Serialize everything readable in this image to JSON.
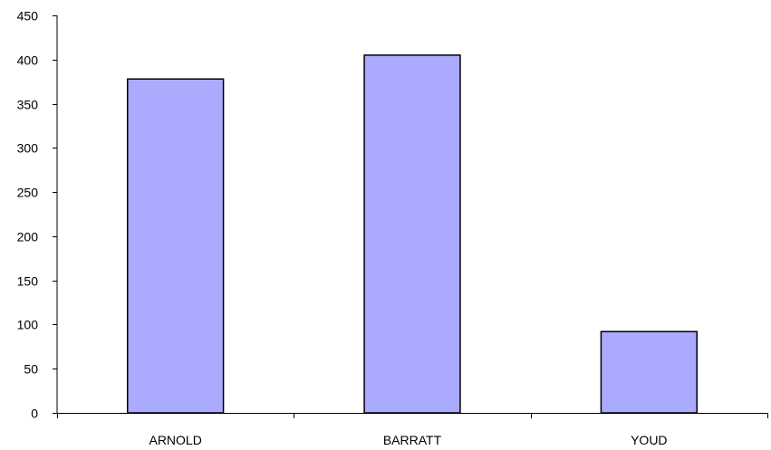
{
  "chart_data": {
    "type": "bar",
    "title": "",
    "xlabel": "",
    "ylabel": "",
    "categories": [
      "ARNOLD",
      "BARRATT",
      "YOUD"
    ],
    "values": [
      378,
      405,
      92
    ],
    "ylim": [
      0,
      450
    ],
    "yticks": [
      0,
      50,
      100,
      150,
      200,
      250,
      300,
      350,
      400,
      450
    ],
    "grid": false,
    "legend": "none",
    "bar_color": "#aaaaff",
    "bar_edge_color": "#000000"
  }
}
